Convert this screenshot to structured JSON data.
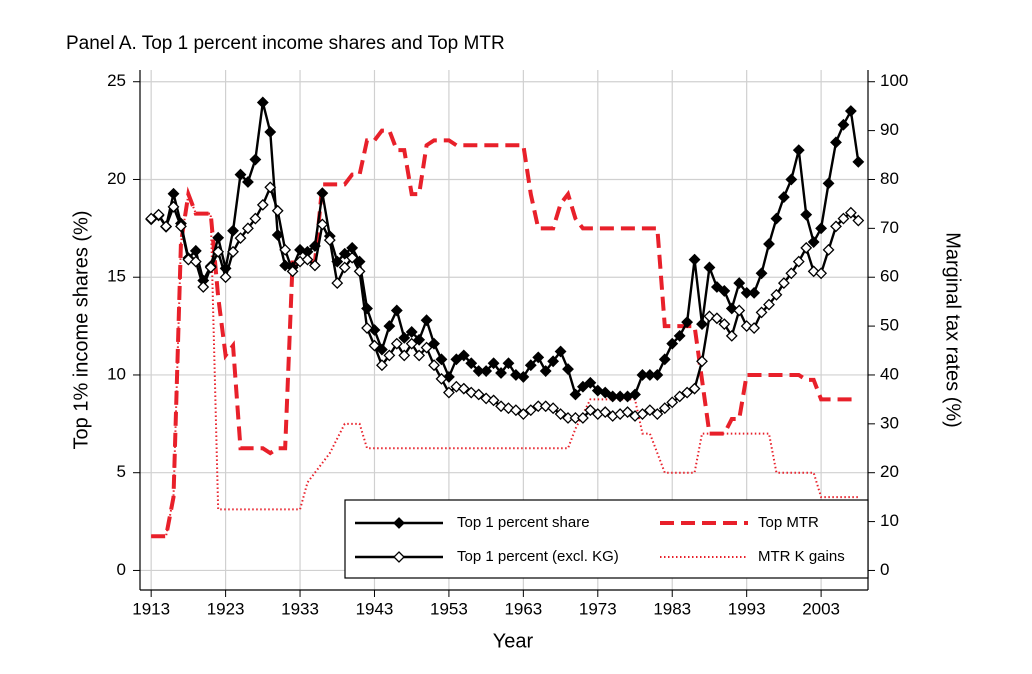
{
  "chart_data": {
    "type": "line",
    "title": "Panel A. Top 1 percent income shares and Top MTR",
    "x_label": "Year",
    "y_label": "Top 1% income shares (%)",
    "y2_label": "Marginal tax rates (%)",
    "x": [
      1913,
      1914,
      1915,
      1916,
      1917,
      1918,
      1919,
      1920,
      1921,
      1922,
      1923,
      1924,
      1925,
      1926,
      1927,
      1928,
      1929,
      1930,
      1931,
      1932,
      1933,
      1934,
      1935,
      1936,
      1937,
      1938,
      1939,
      1940,
      1941,
      1942,
      1943,
      1944,
      1945,
      1946,
      1947,
      1948,
      1949,
      1950,
      1951,
      1952,
      1953,
      1954,
      1955,
      1956,
      1957,
      1958,
      1959,
      1960,
      1961,
      1962,
      1963,
      1964,
      1965,
      1966,
      1967,
      1968,
      1969,
      1970,
      1971,
      1972,
      1973,
      1974,
      1975,
      1976,
      1977,
      1978,
      1979,
      1980,
      1981,
      1982,
      1983,
      1984,
      1985,
      1986,
      1987,
      1988,
      1989,
      1990,
      1991,
      1992,
      1993,
      1994,
      1995,
      1996,
      1997,
      1998,
      1999,
      2000,
      2001,
      2002,
      2003,
      2004,
      2005,
      2006,
      2007,
      2008
    ],
    "series": [
      {
        "name": "Top 1 percent share",
        "color": "#000000",
        "dash": "solid",
        "marker": "diamond-filled",
        "axis": "y",
        "values": [
          17.96,
          18.16,
          17.58,
          19.27,
          17.75,
          15.98,
          16.35,
          14.83,
          15.56,
          17.02,
          15.45,
          17.38,
          20.25,
          19.87,
          21.02,
          23.94,
          22.43,
          17.16,
          15.6,
          15.5,
          16.4,
          16.3,
          16.6,
          19.3,
          17.1,
          15.8,
          16.2,
          16.5,
          15.8,
          13.4,
          12.3,
          11.3,
          12.5,
          13.3,
          11.9,
          12.2,
          11.8,
          12.8,
          11.6,
          10.8,
          9.9,
          10.8,
          11.0,
          10.6,
          10.2,
          10.2,
          10.6,
          10.1,
          10.6,
          10.0,
          9.9,
          10.5,
          10.9,
          10.2,
          10.7,
          11.2,
          10.3,
          9.0,
          9.4,
          9.6,
          9.2,
          9.1,
          8.9,
          8.9,
          8.9,
          9.0,
          10.0,
          10.0,
          10.0,
          10.8,
          11.6,
          12.0,
          12.7,
          15.9,
          12.6,
          15.5,
          14.5,
          14.3,
          13.4,
          14.7,
          14.2,
          14.2,
          15.2,
          16.7,
          18.0,
          19.1,
          20.0,
          21.5,
          18.2,
          16.8,
          17.5,
          19.8,
          21.9,
          22.8,
          23.5,
          20.9
        ]
      },
      {
        "name": "Top 1 percent (excl. KG)",
        "color": "#000000",
        "dash": "solid",
        "marker": "diamond-open",
        "axis": "y",
        "values": [
          18.0,
          18.2,
          17.6,
          18.6,
          17.6,
          15.9,
          15.8,
          14.5,
          15.5,
          16.3,
          15.0,
          16.3,
          17.0,
          17.5,
          18.0,
          18.7,
          19.6,
          18.4,
          16.4,
          15.3,
          15.8,
          15.9,
          15.6,
          17.7,
          16.9,
          14.7,
          15.5,
          16.0,
          15.3,
          12.4,
          11.5,
          10.5,
          11.0,
          11.6,
          11.0,
          11.6,
          11.0,
          11.4,
          10.5,
          9.8,
          9.1,
          9.4,
          9.3,
          9.1,
          9.0,
          8.8,
          8.7,
          8.4,
          8.3,
          8.2,
          8.0,
          8.2,
          8.4,
          8.4,
          8.3,
          8.0,
          7.8,
          7.8,
          7.8,
          8.2,
          8.0,
          8.1,
          7.9,
          8.0,
          8.1,
          7.9,
          8.0,
          8.2,
          8.0,
          8.3,
          8.6,
          8.9,
          9.1,
          9.3,
          10.7,
          13.0,
          12.9,
          12.6,
          12.0,
          13.3,
          12.5,
          12.4,
          13.2,
          13.6,
          14.1,
          14.7,
          15.2,
          15.8,
          16.5,
          15.3,
          15.2,
          16.4,
          17.6,
          18.0,
          18.3,
          17.9
        ]
      },
      {
        "name": "Top MTR",
        "color": "#e8202a",
        "dash": "dashed",
        "marker": "none",
        "axis": "y2",
        "values": [
          7,
          7,
          7,
          15,
          67,
          77,
          73,
          73,
          73,
          56,
          44,
          46,
          25,
          25,
          25,
          25,
          24,
          25,
          25,
          63,
          63,
          63,
          63,
          79,
          79,
          79,
          79,
          81,
          81,
          88,
          88,
          90,
          90,
          86,
          86,
          77,
          77,
          87,
          88,
          88,
          88,
          87,
          87,
          87,
          87,
          87,
          87,
          87,
          87,
          87,
          87,
          77,
          70,
          70,
          70,
          75,
          77,
          72,
          70,
          70,
          70,
          70,
          70,
          70,
          70,
          70,
          70,
          70,
          70,
          50,
          50,
          50,
          50,
          50,
          39,
          28,
          28,
          28,
          31,
          31,
          40,
          40,
          40,
          40,
          40,
          40,
          40,
          40,
          39,
          39,
          35,
          35,
          35,
          35,
          35,
          35
        ]
      },
      {
        "name": "MTR K gains",
        "color": "#e8202a",
        "dash": "dotted",
        "marker": "none",
        "axis": "y2",
        "values": [
          7,
          7,
          7,
          15,
          67,
          77,
          73,
          73,
          73,
          12.5,
          12.5,
          12.5,
          12.5,
          12.5,
          12.5,
          12.5,
          12.5,
          12.5,
          12.5,
          12.5,
          12.5,
          18,
          20,
          22,
          24,
          27,
          30,
          30,
          30,
          25,
          25,
          25,
          25,
          25,
          25,
          25,
          25,
          25,
          25,
          25,
          25,
          25,
          25,
          25,
          25,
          25,
          25,
          25,
          25,
          25,
          25,
          25,
          25,
          25,
          25,
          25,
          25,
          29,
          32,
          35,
          35,
          35,
          35,
          35,
          35,
          35,
          28,
          28,
          24,
          20,
          20,
          20,
          20,
          20,
          28,
          28,
          28,
          28,
          28,
          28,
          28,
          28,
          28,
          28,
          20,
          20,
          20,
          20,
          20,
          20,
          15,
          15,
          15,
          15,
          15,
          15
        ]
      }
    ],
    "xlim": [
      1911.5,
      2009.3
    ],
    "ylim": [
      -1,
      25.6
    ],
    "y2lim": [
      -4,
      102.4
    ],
    "xticks": [
      1913,
      1923,
      1933,
      1943,
      1953,
      1963,
      1973,
      1983,
      1993,
      2003
    ],
    "yticks": [
      0,
      5,
      10,
      15,
      20,
      25
    ],
    "y2ticks": [
      0,
      10,
      20,
      30,
      40,
      50,
      60,
      70,
      80,
      90,
      100
    ],
    "grid": true,
    "legend": "lower right"
  }
}
